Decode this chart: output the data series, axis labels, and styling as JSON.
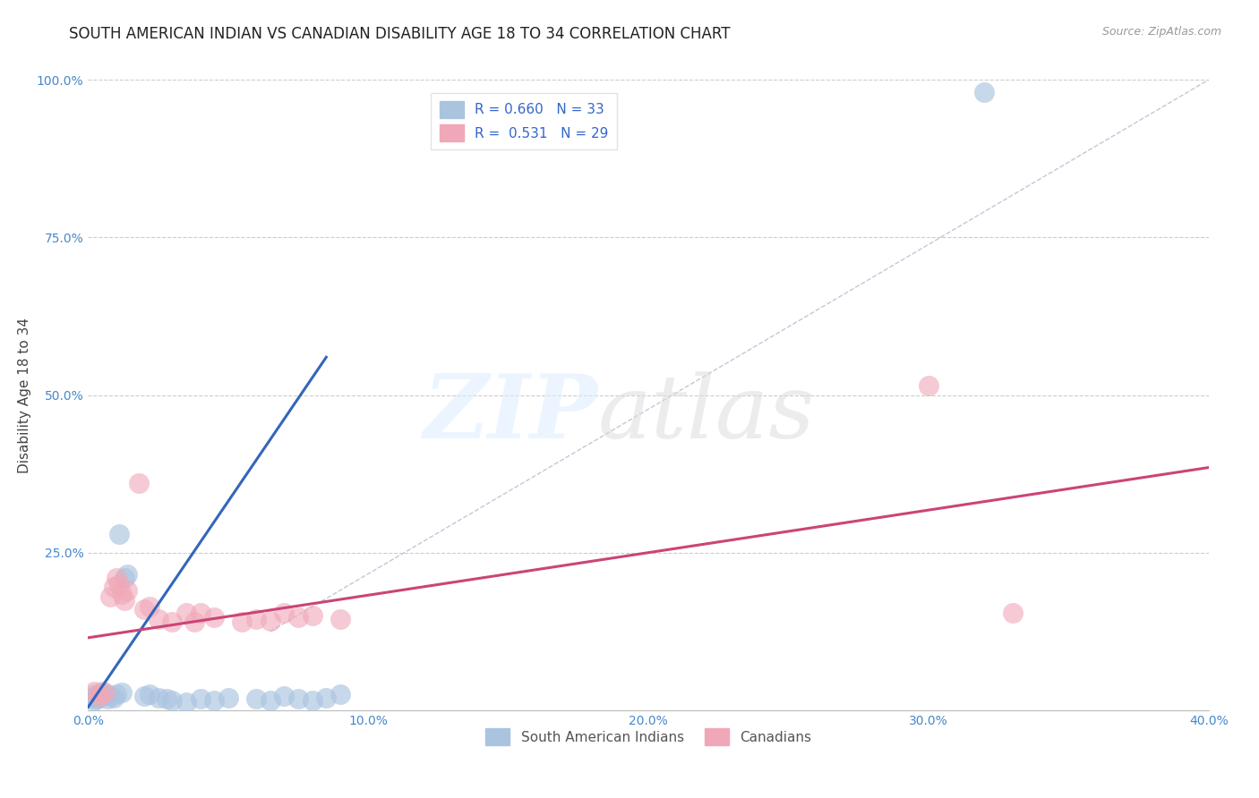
{
  "title": "SOUTH AMERICAN INDIAN VS CANADIAN DISABILITY AGE 18 TO 34 CORRELATION CHART",
  "source": "Source: ZipAtlas.com",
  "ylabel": "Disability Age 18 to 34",
  "xlim": [
    0.0,
    0.4
  ],
  "ylim": [
    0.0,
    1.0
  ],
  "xtick_labels": [
    "0.0%",
    "10.0%",
    "20.0%",
    "30.0%",
    "40.0%"
  ],
  "xtick_vals": [
    0.0,
    0.1,
    0.2,
    0.3,
    0.4
  ],
  "ytick_labels": [
    "25.0%",
    "50.0%",
    "75.0%",
    "100.0%"
  ],
  "ytick_vals": [
    0.25,
    0.5,
    0.75,
    1.0
  ],
  "background_color": "#ffffff",
  "grid_color": "#cccccc",
  "R_blue": 0.66,
  "N_blue": 33,
  "R_pink": 0.531,
  "N_pink": 29,
  "blue_color": "#aac4e0",
  "pink_color": "#f0a8b8",
  "blue_scatter": [
    [
      0.001,
      0.02
    ],
    [
      0.002,
      0.015
    ],
    [
      0.002,
      0.025
    ],
    [
      0.003,
      0.018
    ],
    [
      0.003,
      0.022
    ],
    [
      0.004,
      0.02
    ],
    [
      0.005,
      0.03
    ],
    [
      0.006,
      0.025
    ],
    [
      0.007,
      0.018
    ],
    [
      0.008,
      0.022
    ],
    [
      0.009,
      0.02
    ],
    [
      0.01,
      0.025
    ],
    [
      0.011,
      0.28
    ],
    [
      0.012,
      0.028
    ],
    [
      0.013,
      0.21
    ],
    [
      0.014,
      0.215
    ],
    [
      0.02,
      0.022
    ],
    [
      0.022,
      0.025
    ],
    [
      0.025,
      0.02
    ],
    [
      0.028,
      0.018
    ],
    [
      0.03,
      0.015
    ],
    [
      0.035,
      0.012
    ],
    [
      0.04,
      0.018
    ],
    [
      0.045,
      0.015
    ],
    [
      0.05,
      0.02
    ],
    [
      0.06,
      0.018
    ],
    [
      0.065,
      0.015
    ],
    [
      0.07,
      0.022
    ],
    [
      0.075,
      0.018
    ],
    [
      0.08,
      0.015
    ],
    [
      0.085,
      0.02
    ],
    [
      0.09,
      0.025
    ],
    [
      0.32,
      0.98
    ]
  ],
  "pink_scatter": [
    [
      0.002,
      0.03
    ],
    [
      0.004,
      0.025
    ],
    [
      0.006,
      0.028
    ],
    [
      0.008,
      0.18
    ],
    [
      0.009,
      0.195
    ],
    [
      0.01,
      0.21
    ],
    [
      0.011,
      0.2
    ],
    [
      0.012,
      0.185
    ],
    [
      0.013,
      0.175
    ],
    [
      0.014,
      0.19
    ],
    [
      0.018,
      0.36
    ],
    [
      0.02,
      0.16
    ],
    [
      0.022,
      0.165
    ],
    [
      0.025,
      0.145
    ],
    [
      0.03,
      0.14
    ],
    [
      0.035,
      0.155
    ],
    [
      0.038,
      0.14
    ],
    [
      0.04,
      0.155
    ],
    [
      0.045,
      0.148
    ],
    [
      0.055,
      0.14
    ],
    [
      0.06,
      0.145
    ],
    [
      0.065,
      0.142
    ],
    [
      0.07,
      0.155
    ],
    [
      0.075,
      0.148
    ],
    [
      0.08,
      0.15
    ],
    [
      0.09,
      0.145
    ],
    [
      0.3,
      0.515
    ],
    [
      0.33,
      0.155
    ],
    [
      0.004,
      0.022
    ]
  ],
  "blue_line_x": [
    0.0,
    0.085
  ],
  "blue_line_y": [
    0.005,
    0.56
  ],
  "pink_line_x": [
    0.0,
    0.4
  ],
  "pink_line_y": [
    0.115,
    0.385
  ],
  "diag_line_x": [
    0.065,
    0.4
  ],
  "diag_line_y": [
    0.125,
    1.0
  ],
  "legend_labels": [
    "South American Indians",
    "Canadians"
  ],
  "title_fontsize": 12,
  "label_fontsize": 11,
  "tick_fontsize": 10,
  "legend_fontsize": 11
}
